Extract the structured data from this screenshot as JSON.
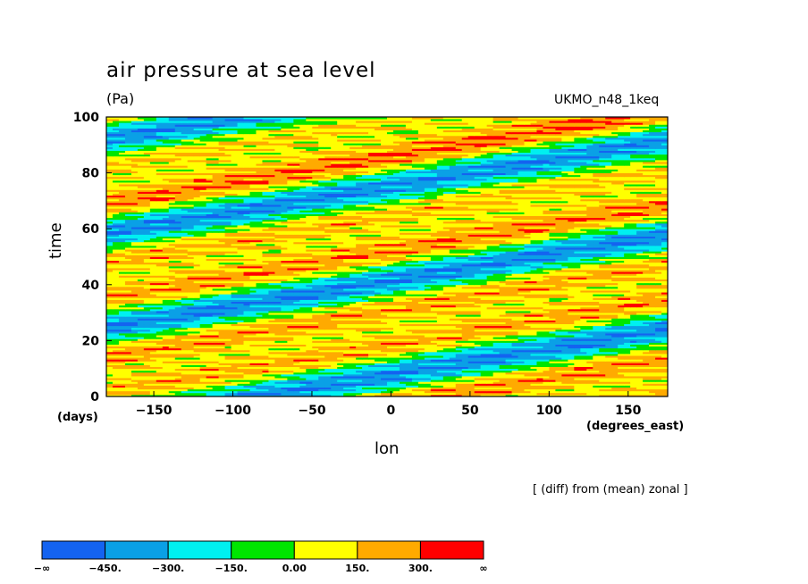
{
  "chart_data": {
    "type": "heatmap",
    "title": "air pressure at sea level",
    "units": "(Pa)",
    "model": "UKMO_n48_1keq",
    "xlabel": "lon",
    "ylabel": "time",
    "x_units": "(degrees_east)",
    "y_units": "(days)",
    "note": "[ (diff) from (mean) zonal ]",
    "xlim": [
      -180,
      175
    ],
    "ylim": [
      0,
      100
    ],
    "x_ticks": [
      -150,
      -100,
      -50,
      0,
      50,
      100,
      150
    ],
    "y_ticks": [
      0,
      20,
      40,
      60,
      80,
      100
    ],
    "levels": [
      -450,
      -300,
      -150,
      0,
      150,
      300
    ],
    "colorbar_labels": [
      "-∞",
      "-450.",
      "-300.",
      "-150.",
      "0.00",
      "150.",
      "300.",
      "∞"
    ],
    "colors": [
      "#1463f0",
      "#0aa0e6",
      "#00f0f0",
      "#00e600",
      "#ffff00",
      "#ffaa00",
      "#ff0000"
    ]
  }
}
